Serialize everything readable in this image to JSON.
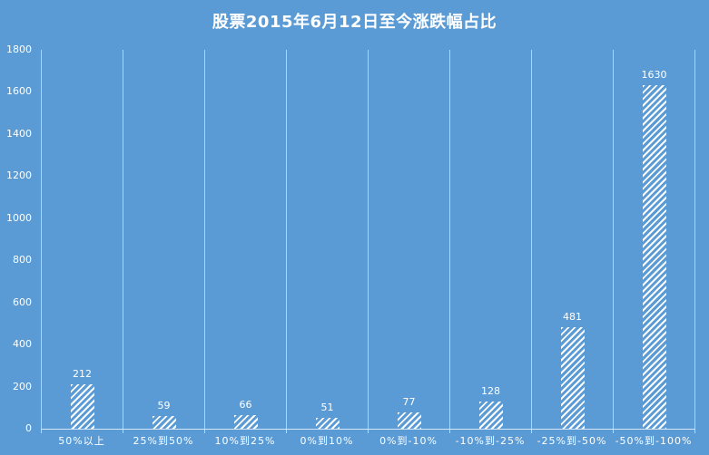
{
  "title": "股票2015年6月12日至今涨跌幅占比",
  "colors": {
    "background": "#5B9BD5",
    "bar_hatch": "#FFFFFF",
    "gridline": "#A9CBE9",
    "axis_line": "#C5DBF0",
    "text": "#FFFFFF"
  },
  "chart_data": {
    "type": "bar",
    "title": "股票2015年6月12日至今涨跌幅占比",
    "categories": [
      "50%以上",
      "25%到50%",
      "10%到25%",
      "0%到10%",
      "0%到-10%",
      "-10%到-25%",
      "-25%到-50%",
      "-50%到-100%"
    ],
    "values": [
      212,
      59,
      66,
      51,
      77,
      128,
      481,
      1630
    ],
    "xlabel": "",
    "ylabel": "",
    "ylim": [
      0,
      1800
    ],
    "yticks": [
      0,
      200,
      400,
      600,
      800,
      1000,
      1200,
      1400,
      1600,
      1800
    ],
    "grid": "vertical-only",
    "legend": "none",
    "bar_style": "white-diagonal-hatch",
    "data_labels": "above-bars"
  }
}
